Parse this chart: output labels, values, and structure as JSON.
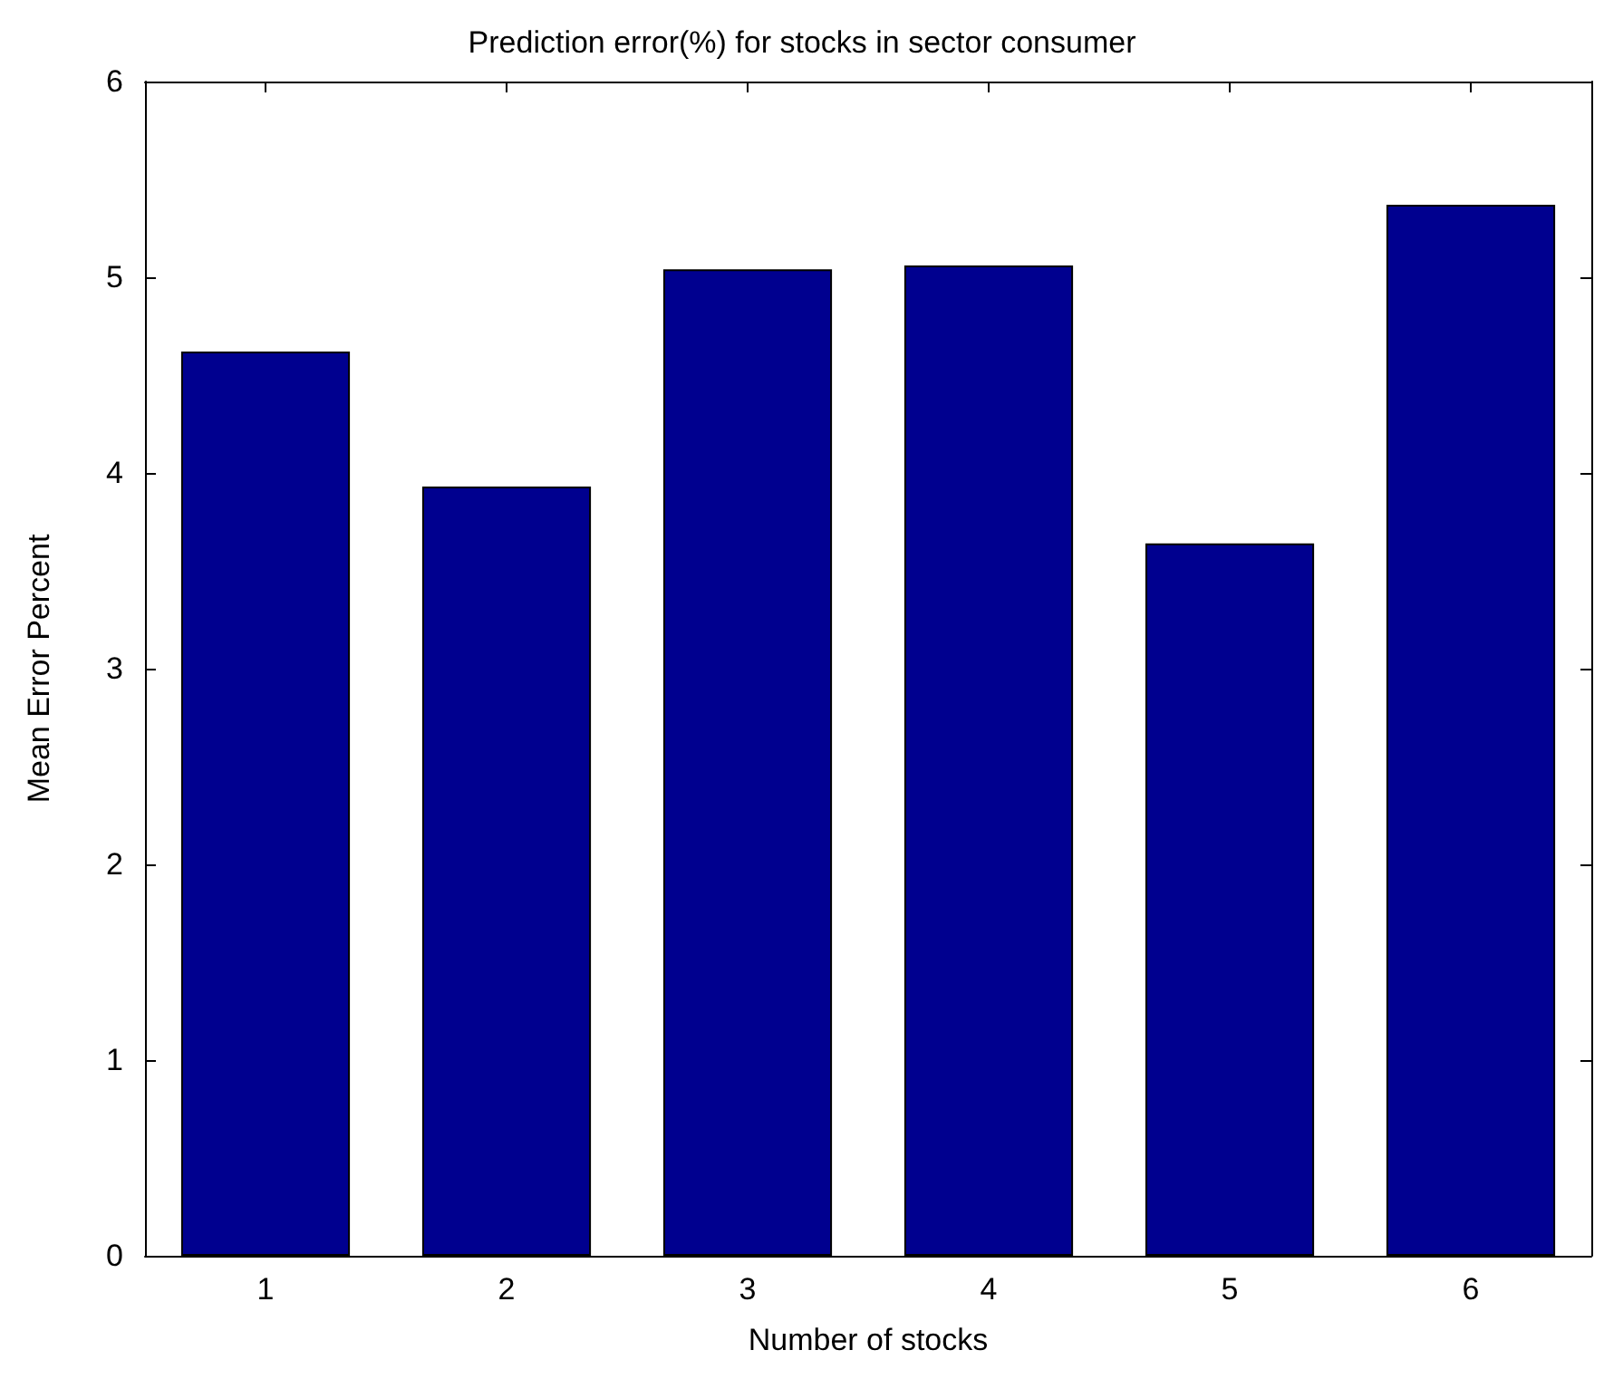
{
  "chart_data": {
    "type": "bar",
    "title": "Prediction error(%) for stocks in sector consumer",
    "xlabel": "Number of stocks",
    "ylabel": "Mean Error Percent",
    "categories": [
      "1",
      "2",
      "3",
      "4",
      "5",
      "6"
    ],
    "values": [
      4.62,
      3.93,
      5.04,
      5.06,
      3.64,
      5.37
    ],
    "color": "#00008f",
    "ylim": [
      0,
      6
    ],
    "yticks": [
      0,
      1,
      2,
      3,
      4,
      5,
      6
    ]
  }
}
